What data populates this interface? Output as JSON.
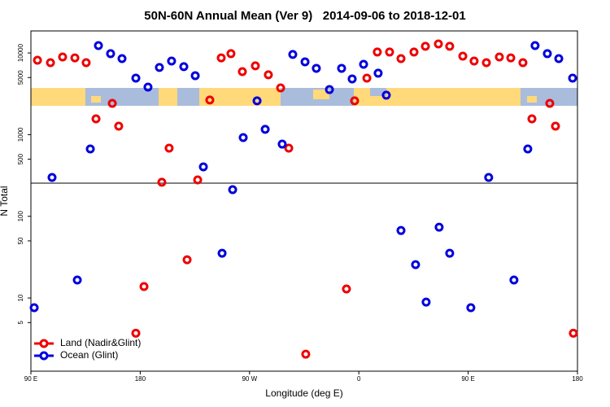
{
  "chart_data": {
    "type": "scatter",
    "title": "50N-60N Annual Mean (Ver 9)   2014-09-06 to 2018-12-01",
    "x_label": "Longitude (deg E)",
    "y_label": "N Total",
    "log_y": true,
    "legend": "bottom-left",
    "xlim": [
      90,
      540
    ],
    "xticks": [
      {
        "value": 90,
        "label": "90 E"
      },
      180,
      {
        "value": 270,
        "label": "90 W"
      },
      {
        "value": 360,
        "label": "0"
      },
      {
        "value": 450,
        "label": "90 E"
      },
      {
        "value": 540,
        "label": "180"
      }
    ],
    "ylim": [
      1.27,
      18600
    ],
    "yticks": [
      5,
      10,
      50,
      100,
      500,
      1000,
      5000,
      10000
    ],
    "series": [
      {
        "name": "Land (Nadir&Glint)",
        "color": "#ee0000",
        "x": [
          95.4,
          106.1,
          116.1,
          126.2,
          135.5,
          143.6,
          157,
          162.3,
          176.4,
          183.1,
          197.8,
          203.8,
          218.6,
          227.3,
          237.3,
          246.7,
          254.7,
          264.1,
          274.8,
          285.5,
          295.6,
          302.3,
          316.3,
          349.8,
          356.5,
          366.6,
          375.2,
          385.3,
          394.7,
          405.4,
          414.8,
          425.5,
          434.8,
          445.6,
          454.9,
          465,
          475.7,
          485.1,
          495.1,
          502.5,
          517.2,
          521.9,
          536.6
        ],
        "values": [
          8150,
          7600,
          8930,
          8700,
          7600,
          1560,
          2415,
          1270,
          3.7,
          13.8,
          261,
          683,
          29.4,
          279,
          2650,
          8700,
          9800,
          5910,
          6950,
          5400,
          3730,
          683,
          2.05,
          12.9,
          2590,
          4920,
          10260,
          10260,
          8530,
          10260,
          12050,
          12900,
          12050,
          9140,
          7960,
          7600,
          8930,
          8700,
          7600,
          1560,
          2415,
          1270,
          3.7
        ]
      },
      {
        "name": "Ocean (Glint)",
        "color": "#0000dd",
        "x": [
          92.7,
          107.4,
          128.2,
          138.9,
          145.6,
          155.6,
          165,
          176.4,
          186.4,
          195.8,
          205.8,
          215.9,
          225.3,
          232,
          247.4,
          256.1,
          264.8,
          276.2,
          282.9,
          296.9,
          305.6,
          315.7,
          325,
          335.8,
          345.8,
          354.5,
          363.9,
          375.9,
          382.6,
          394.7,
          406.7,
          415.4,
          426.1,
          434.8,
          452.2,
          466.9,
          487.7,
          499.1,
          505.1,
          515.2,
          524.6,
          536
        ],
        "values": [
          7.6,
          299,
          16.6,
          668,
          12300,
          9800,
          8530,
          4920,
          3820,
          6640,
          7960,
          6790,
          5270,
          403,
          35.3,
          212,
          920,
          2590,
          1160,
          765,
          9580,
          7780,
          6480,
          3560,
          6480,
          4810,
          7260,
          5650,
          3040,
          67,
          25.6,
          8.9,
          73.6,
          35.3,
          7.6,
          299,
          16.6,
          668,
          12300,
          9800,
          8530,
          4920
        ]
      }
    ]
  }
}
